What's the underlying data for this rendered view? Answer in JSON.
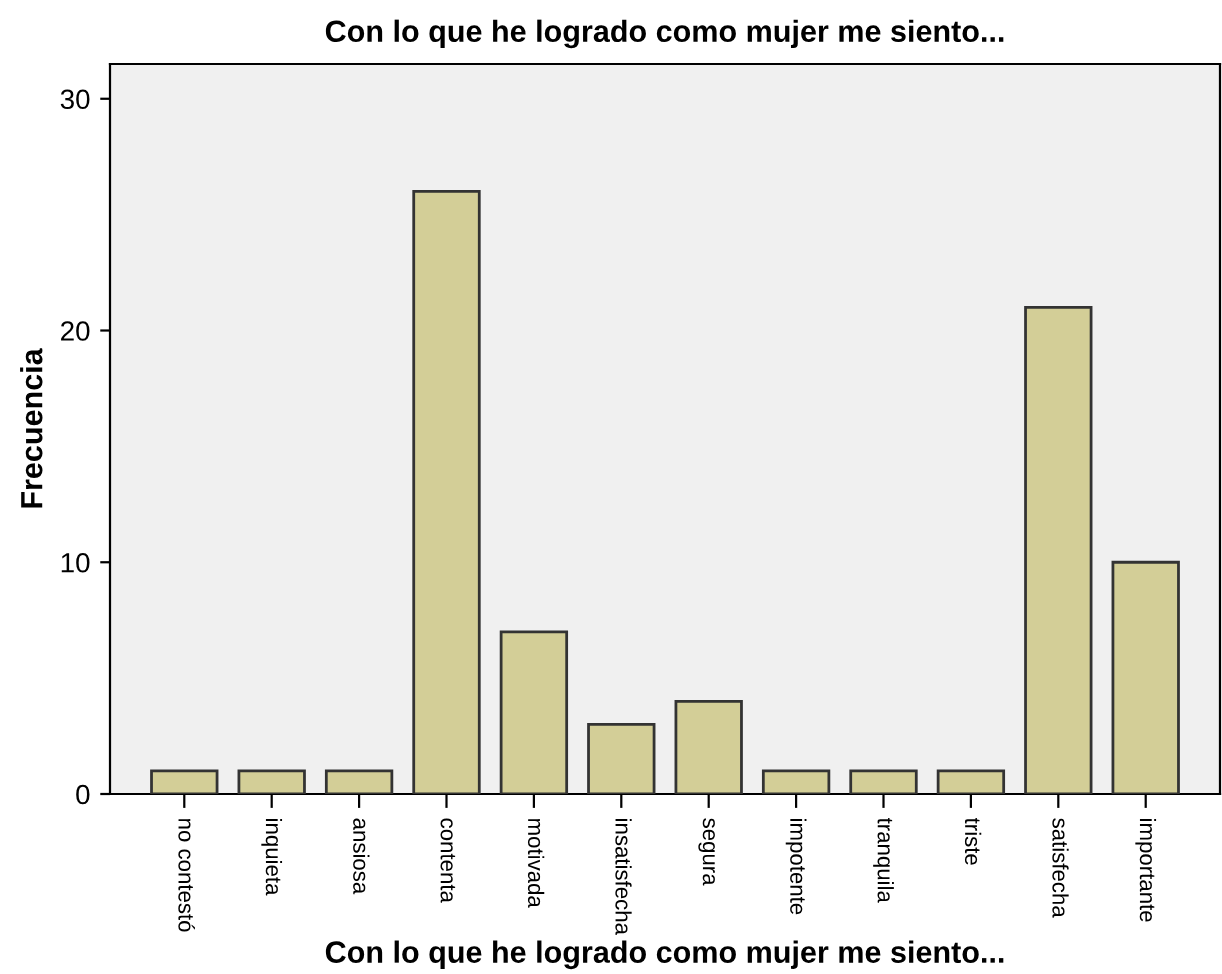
{
  "chart_data": {
    "type": "bar",
    "title": "Con lo que he logrado como mujer me siento...",
    "xlabel": "Con lo que he logrado como mujer me siento...",
    "ylabel": "Frecuencia",
    "categories": [
      "no contestó",
      "inquieta",
      "ansiosa",
      "contenta",
      "motivada",
      "insatisfecha",
      "segura",
      "impotente",
      "tranquila",
      "triste",
      "satisfecha",
      "importante"
    ],
    "values": [
      1,
      1,
      1,
      26,
      7,
      3,
      4,
      1,
      1,
      1,
      21,
      10
    ],
    "color": "#d3ce97",
    "ylim": [
      0,
      31.5
    ],
    "yticks": [
      0,
      10,
      20,
      30
    ],
    "grid": false,
    "legend": false
  }
}
